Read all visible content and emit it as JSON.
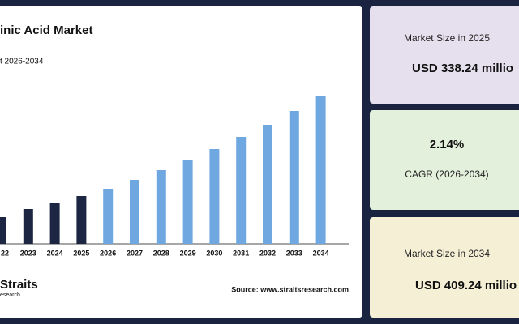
{
  "chart_data": {
    "type": "bar",
    "title": "inic Acid Market",
    "subtitle": "t 2026-2034",
    "categories": [
      "22",
      "2023",
      "2024",
      "2025",
      "2026",
      "2027",
      "2028",
      "2029",
      "2030",
      "2031",
      "2032",
      "2033",
      "2034"
    ],
    "values": [
      33,
      43,
      50,
      59,
      68,
      79,
      91,
      104,
      117,
      132,
      147,
      164,
      182
    ],
    "colors": [
      "#1c2541",
      "#1c2541",
      "#1c2541",
      "#1c2541",
      "#6fa8e0",
      "#6fa8e0",
      "#6fa8e0",
      "#6fa8e0",
      "#6fa8e0",
      "#6fa8e0",
      "#6fa8e0",
      "#6fa8e0",
      "#6fa8e0"
    ],
    "ylim": [
      0,
      200
    ],
    "source": "Source: www.straitsresearch.com",
    "logo": {
      "name": "Straits",
      "sub": "esearch"
    }
  },
  "cards": [
    {
      "label": "Market Size in 2025",
      "value": "USD 338.24 millio"
    },
    {
      "value": "2.14%",
      "label": "CAGR (2026-2034)"
    },
    {
      "label": "Market Size in 2034",
      "value": "USD 409.24 millio"
    }
  ]
}
